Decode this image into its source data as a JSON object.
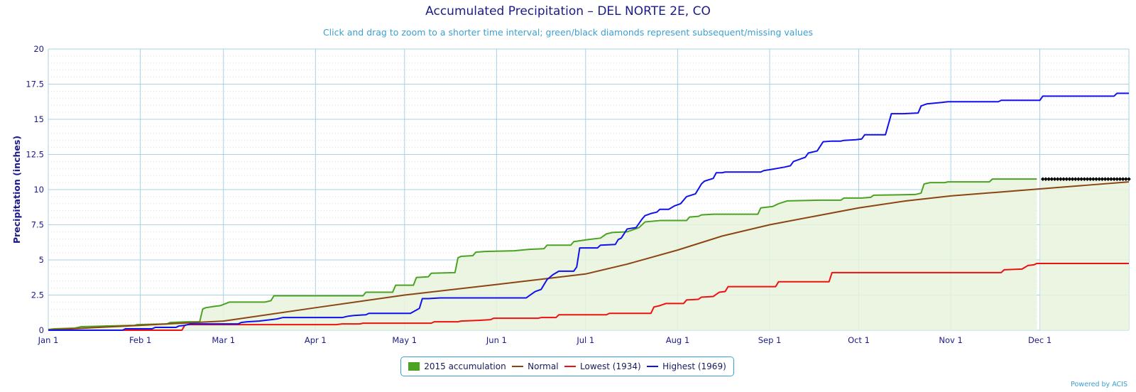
{
  "header": {
    "title": "Accumulated Precipitation – DEL NORTE 2E, CO",
    "subtitle": "Click and drag to zoom to a shorter time interval; green/black diamonds represent subsequent/missing values"
  },
  "footer": {
    "credits": "Powered by ACIS"
  },
  "colors": {
    "accumulation": "#4aa322",
    "accumulation_fill": "#e8f3dc",
    "normal": "#8b4513",
    "lowest": "#ee1111",
    "highest": "#1111ee",
    "grid_major": "#a8d0e6",
    "grid_minor": "#cccccc",
    "axis_text": "#1a1a8a",
    "missing_marker": "#000000"
  },
  "chart_data": {
    "type": "line",
    "title": "Accumulated Precipitation – DEL NORTE 2E, CO",
    "subtitle": "Click and drag to zoom to a shorter time interval; green/black diamonds represent subsequent/missing values",
    "xlabel": "",
    "ylabel": "Precipitation (inches)",
    "ylim": [
      0,
      20
    ],
    "xlim": [
      1,
      365
    ],
    "x_unit": "day_of_year_2015",
    "y_ticks": [
      "0",
      "2.5",
      "5",
      "7.5",
      "10",
      "12.5",
      "15",
      "17.5",
      "20"
    ],
    "y_tick_values": [
      0,
      2.5,
      5,
      7.5,
      10,
      12.5,
      15,
      17.5,
      20
    ],
    "x_ticks": [
      {
        "label": "Jan 1",
        "day": 1
      },
      {
        "label": "Feb 1",
        "day": 32
      },
      {
        "label": "Mar 1",
        "day": 60
      },
      {
        "label": "Apr 1",
        "day": 91
      },
      {
        "label": "May 1",
        "day": 121
      },
      {
        "label": "Jun 1",
        "day": 152
      },
      {
        "label": "Jul 1",
        "day": 182
      },
      {
        "label": "Aug 1",
        "day": 213
      },
      {
        "label": "Sep 1",
        "day": 244
      },
      {
        "label": "Oct 1",
        "day": 274
      },
      {
        "label": "Nov 1",
        "day": 305
      },
      {
        "label": "Dec 1",
        "day": 335
      }
    ],
    "grid": true,
    "legend_position": "bottom-center",
    "series": [
      {
        "name": "2015 accumulation",
        "style": "area-step",
        "points": [
          [
            1,
            0.05
          ],
          [
            3,
            0.1
          ],
          [
            10,
            0.15
          ],
          [
            12,
            0.25
          ],
          [
            21,
            0.3
          ],
          [
            30,
            0.35
          ],
          [
            31,
            0.4
          ],
          [
            41,
            0.45
          ],
          [
            42,
            0.55
          ],
          [
            48,
            0.6
          ],
          [
            52,
            0.6
          ],
          [
            53,
            1.5
          ],
          [
            54,
            1.6
          ],
          [
            57,
            1.7
          ],
          [
            59,
            1.75
          ],
          [
            62,
            2.0
          ],
          [
            74,
            2.0
          ],
          [
            76,
            2.1
          ],
          [
            77,
            2.45
          ],
          [
            107,
            2.45
          ],
          [
            108,
            2.7
          ],
          [
            117,
            2.7
          ],
          [
            118,
            3.2
          ],
          [
            124,
            3.2
          ],
          [
            125,
            3.75
          ],
          [
            129,
            3.8
          ],
          [
            130,
            4.05
          ],
          [
            138,
            4.1
          ],
          [
            139,
            5.15
          ],
          [
            140,
            5.25
          ],
          [
            144,
            5.3
          ],
          [
            145,
            5.55
          ],
          [
            148,
            5.6
          ],
          [
            158,
            5.65
          ],
          [
            163,
            5.75
          ],
          [
            168,
            5.8
          ],
          [
            169,
            6.05
          ],
          [
            177,
            6.05
          ],
          [
            178,
            6.3
          ],
          [
            183,
            6.45
          ],
          [
            187,
            6.55
          ],
          [
            189,
            6.85
          ],
          [
            191,
            6.95
          ],
          [
            196,
            7.0
          ],
          [
            200,
            7.3
          ],
          [
            202,
            7.7
          ],
          [
            207,
            7.8
          ],
          [
            216,
            7.8
          ],
          [
            217,
            8.05
          ],
          [
            220,
            8.1
          ],
          [
            221,
            8.2
          ],
          [
            225,
            8.25
          ],
          [
            240,
            8.25
          ],
          [
            241,
            8.7
          ],
          [
            245,
            8.8
          ],
          [
            247,
            9.0
          ],
          [
            250,
            9.2
          ],
          [
            261,
            9.25
          ],
          [
            268,
            9.25
          ],
          [
            269,
            9.4
          ],
          [
            275,
            9.4
          ],
          [
            278,
            9.45
          ],
          [
            279,
            9.6
          ],
          [
            293,
            9.65
          ],
          [
            295,
            9.75
          ],
          [
            296,
            10.4
          ],
          [
            298,
            10.5
          ],
          [
            303,
            10.5
          ],
          [
            304,
            10.55
          ],
          [
            318,
            10.55
          ],
          [
            319,
            10.75
          ],
          [
            334,
            10.75
          ]
        ]
      },
      {
        "name": "Normal",
        "style": "line",
        "points": [
          [
            1,
            0.02
          ],
          [
            32,
            0.35
          ],
          [
            60,
            0.65
          ],
          [
            91,
            1.6
          ],
          [
            121,
            2.5
          ],
          [
            152,
            3.25
          ],
          [
            182,
            4.0
          ],
          [
            196,
            4.7
          ],
          [
            213,
            5.7
          ],
          [
            228,
            6.7
          ],
          [
            244,
            7.5
          ],
          [
            259,
            8.1
          ],
          [
            274,
            8.7
          ],
          [
            290,
            9.2
          ],
          [
            305,
            9.55
          ],
          [
            320,
            9.8
          ],
          [
            335,
            10.05
          ],
          [
            350,
            10.3
          ],
          [
            365,
            10.55
          ]
        ]
      },
      {
        "name": "Lowest (1934)",
        "style": "step",
        "points": [
          [
            1,
            0.0
          ],
          [
            46,
            0.0
          ],
          [
            47,
            0.35
          ],
          [
            48,
            0.4
          ],
          [
            98,
            0.4
          ],
          [
            100,
            0.45
          ],
          [
            106,
            0.45
          ],
          [
            107,
            0.5
          ],
          [
            130,
            0.5
          ],
          [
            131,
            0.6
          ],
          [
            139,
            0.6
          ],
          [
            140,
            0.65
          ],
          [
            146,
            0.7
          ],
          [
            150,
            0.75
          ],
          [
            151,
            0.85
          ],
          [
            166,
            0.85
          ],
          [
            167,
            0.9
          ],
          [
            172,
            0.9
          ],
          [
            173,
            1.1
          ],
          [
            189,
            1.1
          ],
          [
            190,
            1.2
          ],
          [
            204,
            1.2
          ],
          [
            205,
            1.65
          ],
          [
            207,
            1.75
          ],
          [
            209,
            1.9
          ],
          [
            215,
            1.9
          ],
          [
            216,
            2.15
          ],
          [
            220,
            2.2
          ],
          [
            221,
            2.35
          ],
          [
            225,
            2.4
          ],
          [
            227,
            2.7
          ],
          [
            229,
            2.75
          ],
          [
            230,
            3.1
          ],
          [
            246,
            3.1
          ],
          [
            247,
            3.45
          ],
          [
            264,
            3.45
          ],
          [
            265,
            4.1
          ],
          [
            322,
            4.1
          ],
          [
            323,
            4.3
          ],
          [
            329,
            4.35
          ],
          [
            331,
            4.6
          ],
          [
            333,
            4.65
          ],
          [
            334,
            4.75
          ],
          [
            365,
            4.75
          ]
        ]
      },
      {
        "name": "Highest (1969)",
        "style": "step",
        "points": [
          [
            1,
            0.0
          ],
          [
            26,
            0.0
          ],
          [
            27,
            0.1
          ],
          [
            36,
            0.1
          ],
          [
            37,
            0.2
          ],
          [
            44,
            0.2
          ],
          [
            45,
            0.3
          ],
          [
            47,
            0.35
          ],
          [
            49,
            0.45
          ],
          [
            65,
            0.45
          ],
          [
            66,
            0.55
          ],
          [
            68,
            0.6
          ],
          [
            72,
            0.65
          ],
          [
            74,
            0.7
          ],
          [
            78,
            0.8
          ],
          [
            80,
            0.9
          ],
          [
            100,
            0.9
          ],
          [
            102,
            1.0
          ],
          [
            104,
            1.05
          ],
          [
            108,
            1.1
          ],
          [
            109,
            1.2
          ],
          [
            123,
            1.2
          ],
          [
            126,
            1.55
          ],
          [
            127,
            2.25
          ],
          [
            129,
            2.25
          ],
          [
            133,
            2.3
          ],
          [
            162,
            2.3
          ],
          [
            163,
            2.45
          ],
          [
            165,
            2.75
          ],
          [
            167,
            2.9
          ],
          [
            169,
            3.6
          ],
          [
            171,
            3.95
          ],
          [
            173,
            4.2
          ],
          [
            178,
            4.2
          ],
          [
            179,
            4.5
          ],
          [
            180,
            5.85
          ],
          [
            186,
            5.85
          ],
          [
            187,
            6.05
          ],
          [
            192,
            6.1
          ],
          [
            193,
            6.45
          ],
          [
            194,
            6.55
          ],
          [
            196,
            7.2
          ],
          [
            199,
            7.3
          ],
          [
            201,
            7.9
          ],
          [
            202,
            8.15
          ],
          [
            204,
            8.3
          ],
          [
            206,
            8.4
          ],
          [
            207,
            8.6
          ],
          [
            210,
            8.6
          ],
          [
            212,
            8.85
          ],
          [
            214,
            9.0
          ],
          [
            216,
            9.5
          ],
          [
            219,
            9.7
          ],
          [
            221,
            10.4
          ],
          [
            222,
            10.6
          ],
          [
            225,
            10.8
          ],
          [
            226,
            11.2
          ],
          [
            228,
            11.2
          ],
          [
            229,
            11.25
          ],
          [
            241,
            11.25
          ],
          [
            242,
            11.35
          ],
          [
            245,
            11.45
          ],
          [
            249,
            11.6
          ],
          [
            251,
            11.7
          ],
          [
            252,
            12.0
          ],
          [
            254,
            12.15
          ],
          [
            256,
            12.3
          ],
          [
            257,
            12.6
          ],
          [
            260,
            12.75
          ],
          [
            262,
            13.4
          ],
          [
            265,
            13.45
          ],
          [
            268,
            13.45
          ],
          [
            269,
            13.5
          ],
          [
            273,
            13.55
          ],
          [
            275,
            13.6
          ],
          [
            276,
            13.9
          ],
          [
            283,
            13.9
          ],
          [
            285,
            15.4
          ],
          [
            289,
            15.4
          ],
          [
            294,
            15.45
          ],
          [
            295,
            15.95
          ],
          [
            297,
            16.1
          ],
          [
            302,
            16.2
          ],
          [
            304,
            16.25
          ],
          [
            321,
            16.25
          ],
          [
            322,
            16.35
          ],
          [
            335,
            16.35
          ],
          [
            336,
            16.65
          ],
          [
            360,
            16.65
          ],
          [
            361,
            16.85
          ],
          [
            365,
            16.85
          ]
        ]
      }
    ],
    "missing_markers": {
      "description": "green/black diamonds",
      "start_day": 336,
      "end_day": 365,
      "value": 10.75
    }
  },
  "legend": {
    "items": [
      {
        "label": "2015 accumulation",
        "kind": "box",
        "color": "#4aa322"
      },
      {
        "label": "Normal",
        "kind": "line",
        "color": "#8b4513"
      },
      {
        "label": "Lowest (1934)",
        "kind": "line",
        "color": "#ee1111"
      },
      {
        "label": "Highest (1969)",
        "kind": "line",
        "color": "#1111ee"
      }
    ]
  }
}
